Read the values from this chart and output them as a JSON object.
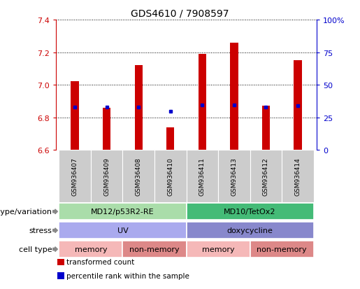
{
  "title": "GDS4610 / 7908597",
  "samples": [
    "GSM936407",
    "GSM936409",
    "GSM936408",
    "GSM936410",
    "GSM936411",
    "GSM936413",
    "GSM936412",
    "GSM936414"
  ],
  "red_values": [
    7.02,
    6.86,
    7.12,
    6.74,
    7.19,
    7.26,
    6.87,
    7.15
  ],
  "blue_values": [
    6.865,
    6.862,
    6.863,
    6.836,
    6.876,
    6.874,
    6.863,
    6.872
  ],
  "ylim": [
    6.6,
    7.4
  ],
  "yticks": [
    6.6,
    6.8,
    7.0,
    7.2,
    7.4
  ],
  "bar_bottom": 6.6,
  "bar_color": "#cc0000",
  "dot_color": "#0000cc",
  "annotation_rows": [
    {
      "label": "genotype/variation",
      "segments": [
        {
          "text": "MD12/p53R2-RE",
          "start": 0,
          "end": 3,
          "color": "#aaddaa"
        },
        {
          "text": "MD10/TetOx2",
          "start": 4,
          "end": 7,
          "color": "#44bb77"
        }
      ]
    },
    {
      "label": "stress",
      "segments": [
        {
          "text": "UV",
          "start": 0,
          "end": 3,
          "color": "#aaaaee"
        },
        {
          "text": "doxycycline",
          "start": 4,
          "end": 7,
          "color": "#8888cc"
        }
      ]
    },
    {
      "label": "cell type",
      "segments": [
        {
          "text": "memory",
          "start": 0,
          "end": 1,
          "color": "#f5b8b8"
        },
        {
          "text": "non-memory",
          "start": 2,
          "end": 3,
          "color": "#dd8888"
        },
        {
          "text": "memory",
          "start": 4,
          "end": 5,
          "color": "#f5b8b8"
        },
        {
          "text": "non-memory",
          "start": 6,
          "end": 7,
          "color": "#dd8888"
        }
      ]
    }
  ],
  "legend_items": [
    {
      "label": "transformed count",
      "color": "#cc0000"
    },
    {
      "label": "percentile rank within the sample",
      "color": "#0000cc"
    }
  ],
  "right_tick_labels": [
    "0",
    "25",
    "50",
    "75",
    "100%"
  ],
  "bar_width": 0.25,
  "title_fontsize": 10,
  "tick_fontsize": 8,
  "sample_fontsize": 6.5,
  "annot_fontsize": 8,
  "legend_fontsize": 7.5
}
